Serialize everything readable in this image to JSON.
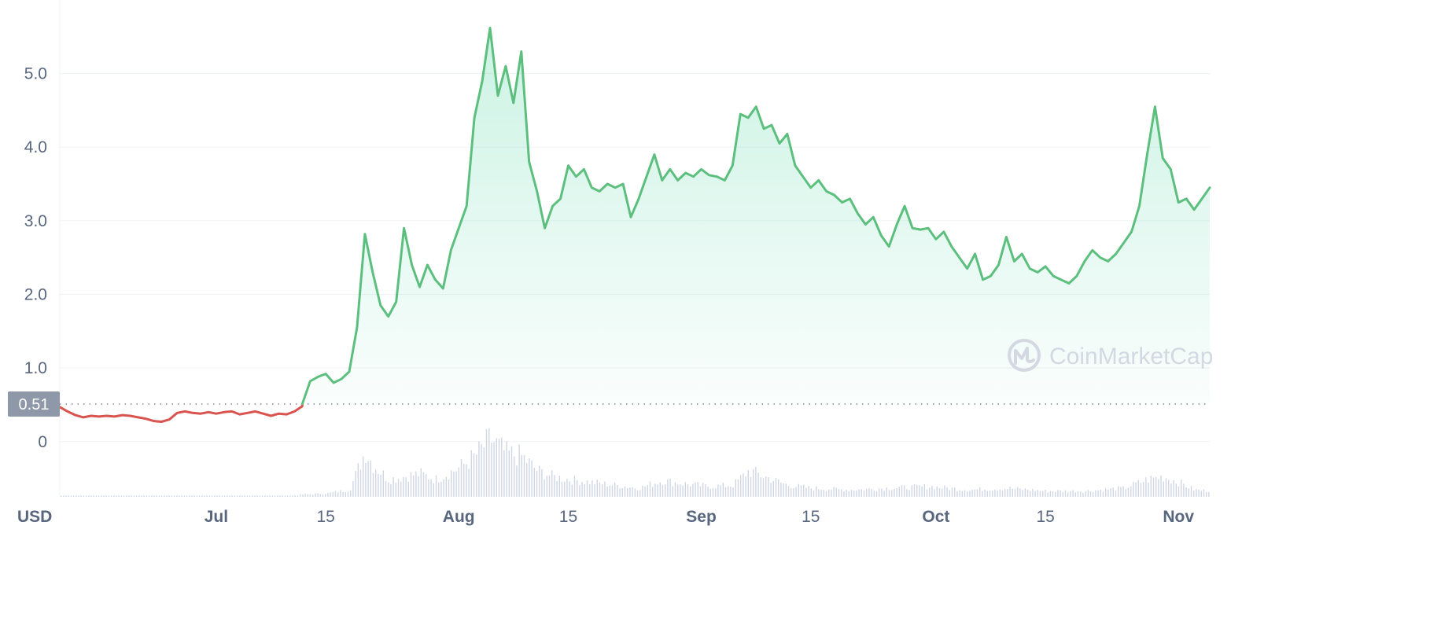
{
  "chart_data": {
    "type": "line",
    "currency": "USD",
    "watermark": "CoinMarketCap",
    "ylim": [
      -0.75,
      5.85
    ],
    "yticks": [
      0,
      1,
      2,
      3,
      4,
      5
    ],
    "ytick_labels": [
      "0",
      "1.0",
      "2.0",
      "3.0",
      "4.0",
      "5.0"
    ],
    "reference_value": 0.51,
    "reference_label": "0.51",
    "xlim": [
      "2022-06-11",
      "2022-11-05"
    ],
    "xticks": [
      {
        "date": "2022-07-01",
        "label": "Jul",
        "bold": true
      },
      {
        "date": "2022-07-15",
        "label": "15",
        "bold": false
      },
      {
        "date": "2022-08-01",
        "label": "Aug",
        "bold": true
      },
      {
        "date": "2022-08-15",
        "label": "15",
        "bold": false
      },
      {
        "date": "2022-09-01",
        "label": "Sep",
        "bold": true
      },
      {
        "date": "2022-09-15",
        "label": "15",
        "bold": false
      },
      {
        "date": "2022-10-01",
        "label": "Oct",
        "bold": true
      },
      {
        "date": "2022-10-15",
        "label": "15",
        "bold": false
      },
      {
        "date": "2022-11-01",
        "label": "Nov",
        "bold": true
      }
    ],
    "colors": {
      "up": "#16c784",
      "up_line": "#5cbf7d",
      "down": "#d9534f",
      "grid": "#eff2f5",
      "volume": "#cfd6e4"
    },
    "series": [
      {
        "values": [
          [
            "2022-06-11",
            0.47
          ],
          [
            "2022-06-12",
            0.41
          ],
          [
            "2022-06-13",
            0.36
          ],
          [
            "2022-06-14",
            0.33
          ],
          [
            "2022-06-15",
            0.35
          ],
          [
            "2022-06-16",
            0.34
          ],
          [
            "2022-06-17",
            0.35
          ],
          [
            "2022-06-18",
            0.34
          ],
          [
            "2022-06-19",
            0.36
          ],
          [
            "2022-06-20",
            0.35
          ],
          [
            "2022-06-21",
            0.33
          ],
          [
            "2022-06-22",
            0.31
          ],
          [
            "2022-06-23",
            0.28
          ],
          [
            "2022-06-24",
            0.27
          ],
          [
            "2022-06-25",
            0.3
          ],
          [
            "2022-06-26",
            0.39
          ],
          [
            "2022-06-27",
            0.41
          ],
          [
            "2022-06-28",
            0.39
          ],
          [
            "2022-06-29",
            0.38
          ],
          [
            "2022-06-30",
            0.4
          ],
          [
            "2022-07-01",
            0.38
          ],
          [
            "2022-07-02",
            0.4
          ],
          [
            "2022-07-03",
            0.41
          ],
          [
            "2022-07-04",
            0.37
          ],
          [
            "2022-07-05",
            0.39
          ],
          [
            "2022-07-06",
            0.41
          ],
          [
            "2022-07-07",
            0.38
          ],
          [
            "2022-07-08",
            0.35
          ],
          [
            "2022-07-09",
            0.38
          ],
          [
            "2022-07-10",
            0.37
          ],
          [
            "2022-07-11",
            0.41
          ],
          [
            "2022-07-12",
            0.48
          ],
          [
            "2022-07-12",
            0.51
          ]
        ]
      },
      {
        "values": [
          [
            "2022-07-12",
            0.51
          ],
          [
            "2022-07-13",
            0.82
          ],
          [
            "2022-07-14",
            0.88
          ],
          [
            "2022-07-15",
            0.92
          ],
          [
            "2022-07-16",
            0.8
          ],
          [
            "2022-07-17",
            0.85
          ],
          [
            "2022-07-18",
            0.95
          ],
          [
            "2022-07-19",
            1.55
          ],
          [
            "2022-07-20",
            2.82
          ],
          [
            "2022-07-21",
            2.3
          ],
          [
            "2022-07-22",
            1.85
          ],
          [
            "2022-07-23",
            1.7
          ],
          [
            "2022-07-24",
            1.9
          ],
          [
            "2022-07-25",
            2.9
          ],
          [
            "2022-07-26",
            2.4
          ],
          [
            "2022-07-27",
            2.1
          ],
          [
            "2022-07-28",
            2.4
          ],
          [
            "2022-07-29",
            2.2
          ],
          [
            "2022-07-30",
            2.08
          ],
          [
            "2022-07-31",
            2.6
          ],
          [
            "2022-08-01",
            2.9
          ],
          [
            "2022-08-02",
            3.2
          ],
          [
            "2022-08-03",
            4.4
          ],
          [
            "2022-08-04",
            4.9
          ],
          [
            "2022-08-05",
            5.62
          ],
          [
            "2022-08-06",
            4.7
          ],
          [
            "2022-08-07",
            5.1
          ],
          [
            "2022-08-08",
            4.6
          ],
          [
            "2022-08-09",
            5.3
          ],
          [
            "2022-08-10",
            3.8
          ],
          [
            "2022-08-11",
            3.4
          ],
          [
            "2022-08-12",
            2.9
          ],
          [
            "2022-08-13",
            3.2
          ],
          [
            "2022-08-14",
            3.3
          ],
          [
            "2022-08-15",
            3.75
          ],
          [
            "2022-08-16",
            3.6
          ],
          [
            "2022-08-17",
            3.7
          ],
          [
            "2022-08-18",
            3.45
          ],
          [
            "2022-08-19",
            3.4
          ],
          [
            "2022-08-20",
            3.5
          ],
          [
            "2022-08-21",
            3.45
          ],
          [
            "2022-08-22",
            3.5
          ],
          [
            "2022-08-23",
            3.05
          ],
          [
            "2022-08-24",
            3.3
          ],
          [
            "2022-08-25",
            3.6
          ],
          [
            "2022-08-26",
            3.9
          ],
          [
            "2022-08-27",
            3.55
          ],
          [
            "2022-08-28",
            3.7
          ],
          [
            "2022-08-29",
            3.55
          ],
          [
            "2022-08-30",
            3.65
          ],
          [
            "2022-08-31",
            3.6
          ],
          [
            "2022-09-01",
            3.7
          ],
          [
            "2022-09-02",
            3.62
          ],
          [
            "2022-09-03",
            3.6
          ],
          [
            "2022-09-04",
            3.55
          ],
          [
            "2022-09-05",
            3.75
          ],
          [
            "2022-09-06",
            4.45
          ],
          [
            "2022-09-07",
            4.4
          ],
          [
            "2022-09-08",
            4.55
          ],
          [
            "2022-09-09",
            4.25
          ],
          [
            "2022-09-10",
            4.3
          ],
          [
            "2022-09-11",
            4.05
          ],
          [
            "2022-09-12",
            4.18
          ],
          [
            "2022-09-13",
            3.75
          ],
          [
            "2022-09-14",
            3.6
          ],
          [
            "2022-09-15",
            3.45
          ],
          [
            "2022-09-16",
            3.55
          ],
          [
            "2022-09-17",
            3.4
          ],
          [
            "2022-09-18",
            3.35
          ],
          [
            "2022-09-19",
            3.25
          ],
          [
            "2022-09-20",
            3.3
          ],
          [
            "2022-09-21",
            3.1
          ],
          [
            "2022-09-22",
            2.95
          ],
          [
            "2022-09-23",
            3.05
          ],
          [
            "2022-09-24",
            2.8
          ],
          [
            "2022-09-25",
            2.65
          ],
          [
            "2022-09-26",
            2.95
          ],
          [
            "2022-09-27",
            3.2
          ],
          [
            "2022-09-28",
            2.9
          ],
          [
            "2022-09-29",
            2.88
          ],
          [
            "2022-09-30",
            2.9
          ],
          [
            "2022-10-01",
            2.75
          ],
          [
            "2022-10-02",
            2.85
          ],
          [
            "2022-10-03",
            2.65
          ],
          [
            "2022-10-04",
            2.5
          ],
          [
            "2022-10-05",
            2.35
          ],
          [
            "2022-10-06",
            2.55
          ],
          [
            "2022-10-07",
            2.2
          ],
          [
            "2022-10-08",
            2.25
          ],
          [
            "2022-10-09",
            2.4
          ],
          [
            "2022-10-10",
            2.78
          ],
          [
            "2022-10-11",
            2.45
          ],
          [
            "2022-10-12",
            2.55
          ],
          [
            "2022-10-13",
            2.35
          ],
          [
            "2022-10-14",
            2.3
          ],
          [
            "2022-10-15",
            2.38
          ],
          [
            "2022-10-16",
            2.25
          ],
          [
            "2022-10-17",
            2.2
          ],
          [
            "2022-10-18",
            2.15
          ],
          [
            "2022-10-19",
            2.25
          ],
          [
            "2022-10-20",
            2.45
          ],
          [
            "2022-10-21",
            2.6
          ],
          [
            "2022-10-22",
            2.5
          ],
          [
            "2022-10-23",
            2.45
          ],
          [
            "2022-10-24",
            2.55
          ],
          [
            "2022-10-25",
            2.7
          ],
          [
            "2022-10-26",
            2.85
          ],
          [
            "2022-10-27",
            3.2
          ],
          [
            "2022-10-28",
            3.9
          ],
          [
            "2022-10-29",
            4.55
          ],
          [
            "2022-10-30",
            3.85
          ],
          [
            "2022-10-31",
            3.7
          ],
          [
            "2022-11-01",
            3.25
          ],
          [
            "2022-11-02",
            3.3
          ],
          [
            "2022-11-03",
            3.15
          ],
          [
            "2022-11-04",
            3.3
          ],
          [
            "2022-11-05",
            3.45
          ]
        ]
      }
    ],
    "volume": [
      [
        "2022-06-11",
        0.02
      ],
      [
        "2022-06-15",
        0.01
      ],
      [
        "2022-06-20",
        0.01
      ],
      [
        "2022-06-25",
        0.01
      ],
      [
        "2022-06-30",
        0.01
      ],
      [
        "2022-07-05",
        0.01
      ],
      [
        "2022-07-10",
        0.01
      ],
      [
        "2022-07-12",
        0.04
      ],
      [
        "2022-07-15",
        0.06
      ],
      [
        "2022-07-18",
        0.12
      ],
      [
        "2022-07-20",
        0.8
      ],
      [
        "2022-07-21",
        0.55
      ],
      [
        "2022-07-23",
        0.3
      ],
      [
        "2022-07-25",
        0.35
      ],
      [
        "2022-07-27",
        0.4
      ],
      [
        "2022-07-29",
        0.3
      ],
      [
        "2022-08-01",
        0.5
      ],
      [
        "2022-08-03",
        0.7
      ],
      [
        "2022-08-05",
        1.0
      ],
      [
        "2022-08-07",
        0.75
      ],
      [
        "2022-08-09",
        0.7
      ],
      [
        "2022-08-11",
        0.45
      ],
      [
        "2022-08-13",
        0.35
      ],
      [
        "2022-08-15",
        0.3
      ],
      [
        "2022-08-18",
        0.25
      ],
      [
        "2022-08-21",
        0.2
      ],
      [
        "2022-08-24",
        0.15
      ],
      [
        "2022-08-27",
        0.28
      ],
      [
        "2022-08-30",
        0.22
      ],
      [
        "2022-09-02",
        0.18
      ],
      [
        "2022-09-05",
        0.2
      ],
      [
        "2022-09-07",
        0.45
      ],
      [
        "2022-09-09",
        0.35
      ],
      [
        "2022-09-12",
        0.2
      ],
      [
        "2022-09-15",
        0.15
      ],
      [
        "2022-09-20",
        0.12
      ],
      [
        "2022-09-25",
        0.15
      ],
      [
        "2022-09-30",
        0.18
      ],
      [
        "2022-10-05",
        0.12
      ],
      [
        "2022-10-10",
        0.15
      ],
      [
        "2022-10-15",
        0.1
      ],
      [
        "2022-10-20",
        0.1
      ],
      [
        "2022-10-25",
        0.15
      ],
      [
        "2022-10-28",
        0.3
      ],
      [
        "2022-10-30",
        0.35
      ],
      [
        "2022-11-01",
        0.25
      ],
      [
        "2022-11-03",
        0.12
      ],
      [
        "2022-11-05",
        0.1
      ]
    ]
  }
}
